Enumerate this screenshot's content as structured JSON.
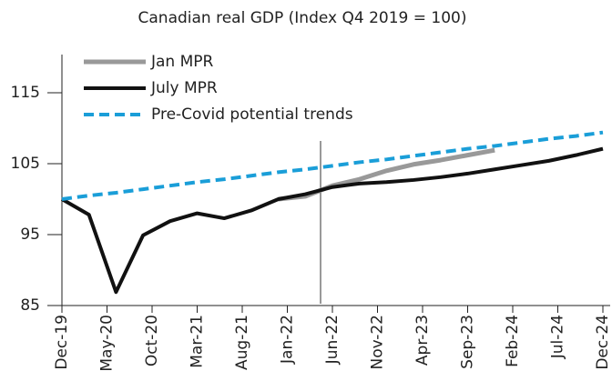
{
  "chart_data": {
    "type": "line",
    "title": "Canadian real GDP (Index Q4 2019 = 100)",
    "x": [
      0,
      3,
      6,
      9,
      12,
      15,
      18,
      21,
      24,
      27,
      30,
      33,
      36,
      39,
      42,
      45,
      48,
      51,
      54,
      57,
      60
    ],
    "xlim": [
      0,
      60
    ],
    "xticks": [
      {
        "value": 0,
        "label": "Dec-19"
      },
      {
        "value": 5,
        "label": "May-20"
      },
      {
        "value": 10,
        "label": "Oct-20"
      },
      {
        "value": 15,
        "label": "Mar-21"
      },
      {
        "value": 20,
        "label": "Aug-21"
      },
      {
        "value": 25,
        "label": "Jan-22"
      },
      {
        "value": 30,
        "label": "Jun-22"
      },
      {
        "value": 35,
        "label": "Nov-22"
      },
      {
        "value": 40,
        "label": "Apr-23"
      },
      {
        "value": 45,
        "label": "Sep-23"
      },
      {
        "value": 50,
        "label": "Feb-24"
      },
      {
        "value": 55,
        "label": "Jul-24"
      },
      {
        "value": 60,
        "label": "Dec-24"
      }
    ],
    "ylim": [
      85,
      115
    ],
    "yticks": [
      85,
      95,
      105,
      115
    ],
    "series": [
      {
        "name": "Jan MPR",
        "color": "#999999",
        "width": 5,
        "dashed": false,
        "values": [
          null,
          null,
          null,
          null,
          null,
          null,
          null,
          null,
          100.0,
          100.4,
          101.9,
          102.8,
          104.0,
          104.9,
          105.5,
          106.2,
          106.9,
          null,
          null,
          null,
          null
        ]
      },
      {
        "name": "July MPR",
        "color": "#111111",
        "width": 4,
        "dashed": false,
        "values": [
          100.0,
          97.8,
          86.9,
          94.9,
          96.9,
          98.0,
          97.3,
          98.4,
          100.0,
          100.7,
          101.7,
          102.2,
          102.4,
          102.7,
          103.1,
          103.6,
          104.2,
          104.8,
          105.4,
          106.2,
          107.1
        ]
      },
      {
        "name": "Pre-Covid potential trends",
        "color": "#1a9ed8",
        "width": 4,
        "dashed": true,
        "values": [
          100.0,
          100.5,
          100.9,
          101.4,
          101.9,
          102.4,
          102.8,
          103.3,
          103.8,
          104.2,
          104.7,
          105.2,
          105.6,
          106.1,
          106.6,
          107.1,
          107.5,
          108.0,
          108.5,
          108.9,
          109.4
        ]
      }
    ]
  }
}
